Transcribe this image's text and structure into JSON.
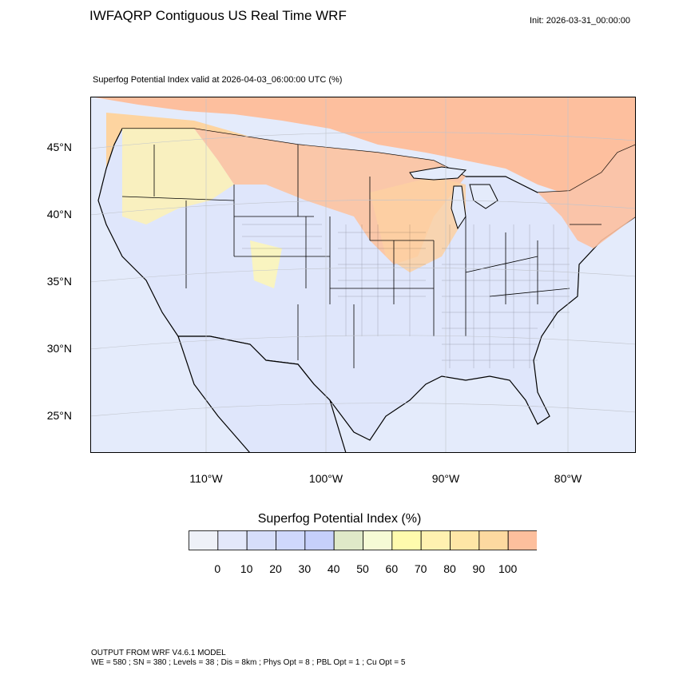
{
  "header": {
    "title": "IWFAQRP Contiguous US Real Time WRF",
    "init": "Init: 2026-03-31_00:00:00"
  },
  "map": {
    "subtitle": "Superfog Potential Index valid at 2026-04-03_06:00:00 UTC   (%)",
    "lat_labels": [
      "45°N",
      "40°N",
      "35°N",
      "30°N",
      "25°N"
    ],
    "lon_labels": [
      "110°W",
      "100°W",
      "90°W",
      "80°W"
    ],
    "colors": {
      "ocean": "#e4ebfb",
      "land_low": "#dfe6fb",
      "fog_high": "#fdbf9e",
      "fog_mid": "#fde3a4",
      "fog_yellow": "#fff8a8",
      "border": "#000000"
    }
  },
  "colorbar": {
    "title": "Superfog Potential Index  (%)",
    "ticks": [
      "0",
      "10",
      "20",
      "30",
      "40",
      "50",
      "60",
      "70",
      "80",
      "90",
      "100"
    ],
    "colors": [
      "#eef1f8",
      "#e3e8fb",
      "#d6defb",
      "#cfd8fc",
      "#c6d0fb",
      "#dfe9c8",
      "#f6fbd5",
      "#fffbad",
      "#fff1b0",
      "#fee6a6",
      "#fdd9a0",
      "#fdbf9d"
    ]
  },
  "footer": {
    "line1": "OUTPUT FROM WRF V4.6.1 MODEL",
    "line2": "WE = 580 ; SN = 380 ; Levels = 38 ; Dis = 8km ; Phys Opt = 8 ; PBL Opt = 1 ; Cu Opt = 5"
  }
}
